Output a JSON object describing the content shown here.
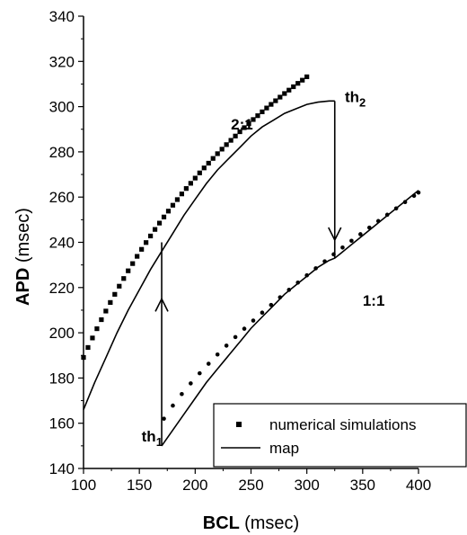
{
  "chart_data": {
    "type": "line",
    "xlabel": {
      "main": "BCL",
      "unit": "(msec)"
    },
    "ylabel": {
      "main": "APD",
      "unit": "(msec)"
    },
    "xlim": [
      100,
      400
    ],
    "ylim": [
      140,
      340
    ],
    "xticks": [
      100,
      150,
      200,
      250,
      300,
      350,
      400
    ],
    "yticks": [
      140,
      160,
      180,
      200,
      220,
      240,
      260,
      280,
      300,
      320,
      340
    ],
    "grid": false,
    "legend": {
      "placement": "bottom-right",
      "entries": [
        {
          "label": "numerical simulations",
          "style": "squares"
        },
        {
          "label": "map",
          "style": "line"
        }
      ]
    },
    "series": [
      {
        "name": "numerical simulations",
        "style": "squares",
        "x": [
          100,
          104,
          108,
          112,
          116,
          120,
          124,
          128,
          132,
          136,
          140,
          144,
          148,
          152,
          156,
          160,
          164,
          168,
          172,
          176,
          180,
          184,
          188,
          192,
          196,
          200,
          204,
          208,
          212,
          216,
          220,
          224,
          228,
          232,
          236,
          240,
          244,
          248,
          252,
          256,
          260,
          264,
          268,
          272,
          276,
          280,
          284,
          288,
          292,
          296,
          300
        ],
        "y": [
          189.1,
          193.5,
          197.7,
          201.8,
          205.8,
          209.6,
          213.4,
          217.0,
          220.6,
          224.0,
          227.4,
          230.6,
          233.8,
          236.9,
          239.9,
          242.8,
          245.7,
          248.5,
          251.2,
          253.8,
          256.4,
          258.9,
          261.4,
          263.8,
          266.1,
          268.4,
          270.7,
          272.9,
          275.0,
          277.1,
          279.2,
          281.2,
          283.2,
          285.1,
          287.0,
          288.9,
          290.7,
          292.5,
          294.3,
          296.0,
          297.7,
          299.4,
          301.0,
          302.6,
          304.2,
          305.8,
          307.3,
          308.8,
          310.3,
          311.7,
          313.2
        ]
      },
      {
        "name": "numerical simulations",
        "style": "dots",
        "x": [
          172,
          180,
          188,
          196,
          204,
          212,
          220,
          228,
          236,
          244,
          252,
          260,
          268,
          276,
          284,
          292,
          300,
          308,
          316,
          324,
          332,
          340,
          348,
          356,
          364,
          372,
          380,
          388,
          396,
          400
        ],
        "y": [
          162.0,
          167.8,
          172.9,
          177.6,
          182.1,
          186.3,
          190.4,
          194.3,
          198.1,
          201.8,
          205.4,
          208.9,
          212.3,
          215.7,
          219.0,
          222.2,
          225.4,
          228.5,
          231.6,
          234.7,
          237.7,
          240.7,
          243.6,
          246.5,
          249.4,
          252.2,
          255.0,
          257.8,
          260.6,
          262.0
        ]
      },
      {
        "name": "map",
        "style": "line",
        "label": "2:1",
        "x": [
          100,
          110,
          120,
          130,
          140,
          150,
          160,
          170,
          180,
          190,
          200,
          210,
          220,
          230,
          240,
          250,
          260,
          270,
          280,
          290,
          300,
          310,
          320,
          325
        ],
        "y": [
          166,
          178,
          189,
          200,
          210,
          219,
          228,
          236,
          244,
          252,
          259,
          266,
          272,
          277,
          282,
          287,
          291,
          294,
          297,
          299,
          301,
          302,
          302.5,
          302.5
        ]
      },
      {
        "name": "map",
        "style": "line",
        "label": "1:1",
        "x": [
          170,
          180,
          190,
          200,
          210,
          220,
          230,
          240,
          250,
          260,
          270,
          280,
          290,
          300,
          310,
          320,
          325,
          330,
          340,
          350,
          360,
          370,
          380,
          390,
          400
        ],
        "y": [
          150,
          157,
          164,
          171,
          178,
          184,
          190,
          196,
          202,
          207,
          212,
          217,
          221,
          225,
          229,
          232,
          233,
          235,
          239,
          243,
          247,
          251,
          255,
          259,
          263
        ]
      }
    ],
    "annotations": [
      {
        "text": "2:1",
        "x": 232,
        "y": 290
      },
      {
        "text": "1:1",
        "x": 350,
        "y": 212
      },
      {
        "text": "th",
        "sub": "1",
        "x": 152,
        "y": 152
      },
      {
        "text": "th",
        "sub": "2",
        "x": 334,
        "y": 302
      }
    ],
    "jumps": [
      {
        "x": 170,
        "y_from": 150,
        "y_to": 240,
        "arrow_at": 215,
        "direction": "up"
      },
      {
        "x": 325,
        "y_from": 302.5,
        "y_to": 233,
        "arrow_at": 241,
        "direction": "down"
      }
    ]
  }
}
